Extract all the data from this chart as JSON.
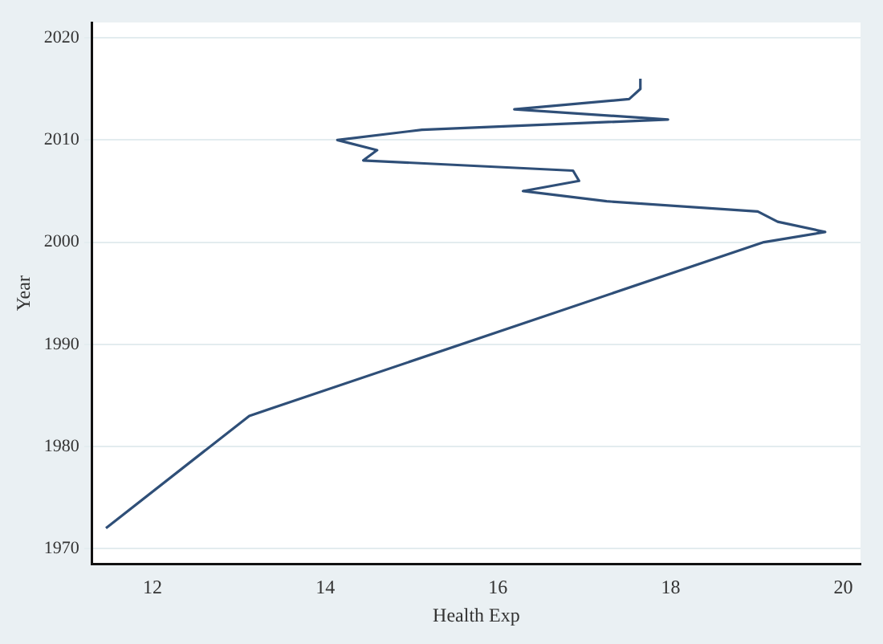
{
  "chart_data": {
    "type": "line",
    "xlabel": "Health Exp",
    "ylabel": "Year",
    "series": [
      {
        "color": "#2f4f78",
        "x": [
          11.46,
          13.12,
          19.08,
          19.79,
          19.24,
          19.01,
          17.26,
          16.29,
          16.94,
          16.87,
          14.44,
          14.6,
          14.14,
          15.12,
          17.97,
          16.19,
          17.52,
          17.65,
          17.65
        ],
        "values": [
          1972,
          1983,
          2000,
          2001,
          2002,
          2003,
          2004,
          2005,
          2006,
          2007,
          2008,
          2009,
          2010,
          2011,
          2012,
          2013,
          2014,
          2015,
          2016
        ]
      }
    ],
    "xlim": [
      11.3,
      20.2
    ],
    "ylim": [
      1968.5,
      2021.5
    ],
    "xticks": [
      12,
      14,
      16,
      18,
      20
    ],
    "yticks": [
      1970,
      1980,
      1990,
      2000,
      2010,
      2020
    ],
    "grid": "y",
    "marker": "none",
    "line_style": "solid",
    "legend": false
  }
}
